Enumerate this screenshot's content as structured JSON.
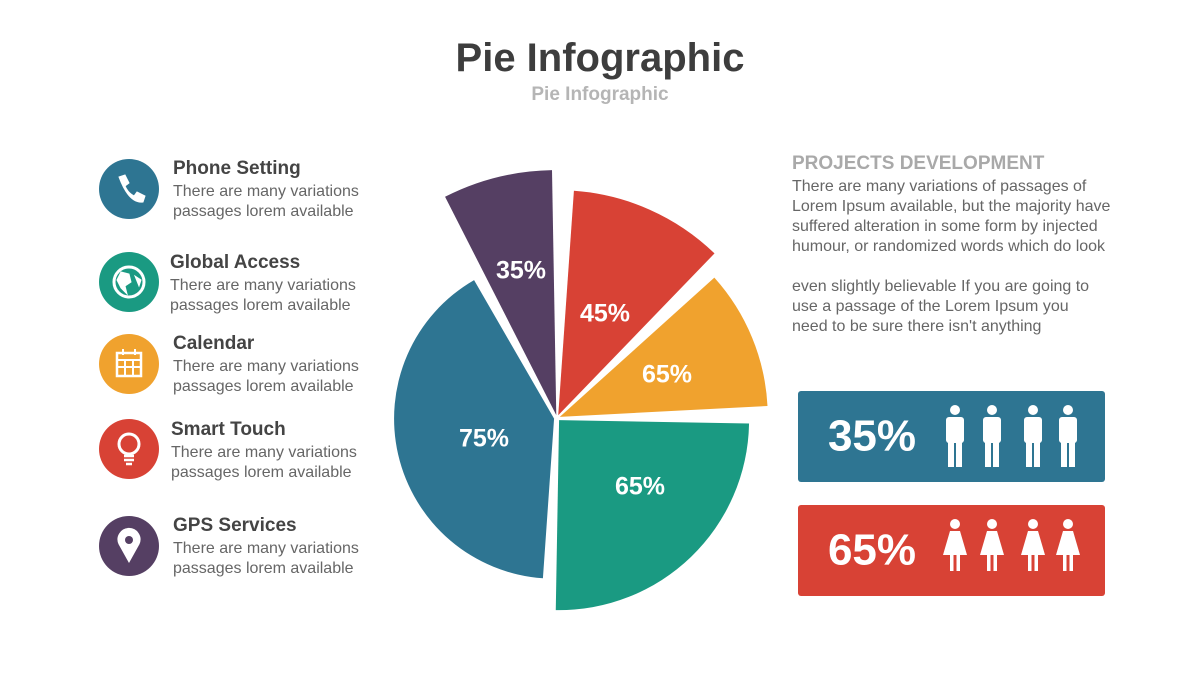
{
  "title": "Pie Infographic",
  "subtitle": "Pie Infographic",
  "features": [
    {
      "title": "Phone Setting",
      "text": [
        "There are many variations",
        "passages lorem available"
      ]
    },
    {
      "title": "Global Access",
      "text": [
        "There are many variations",
        "passages lorem available"
      ]
    },
    {
      "title": "Calendar",
      "text": [
        "There are many variations",
        "passages lorem available"
      ]
    },
    {
      "title": "Smart Touch",
      "text": [
        "There are many variations",
        "passages lorem available"
      ]
    },
    {
      "title": "GPS Services",
      "text": [
        "There are many variations",
        "passages lorem available"
      ]
    }
  ],
  "pie": {
    "labels": [
      "35%",
      "45%",
      "65%",
      "65%",
      "75%"
    ]
  },
  "projects": {
    "heading": "PROJECTS DEVELOPMENT",
    "paragraphs": [
      [
        "There are many variations of passages  of",
        "Lorem Ipsum available, but the majority have",
        "suffered alteration in some form by injected",
        "humour, or randomized words which do look"
      ],
      [
        "even slightly believable  If you are going to",
        "use a passage of the Lorem Ipsum you",
        "need to be sure there isn't anything"
      ]
    ]
  },
  "stats": [
    {
      "label": "35%"
    },
    {
      "label": "65%"
    }
  ]
}
